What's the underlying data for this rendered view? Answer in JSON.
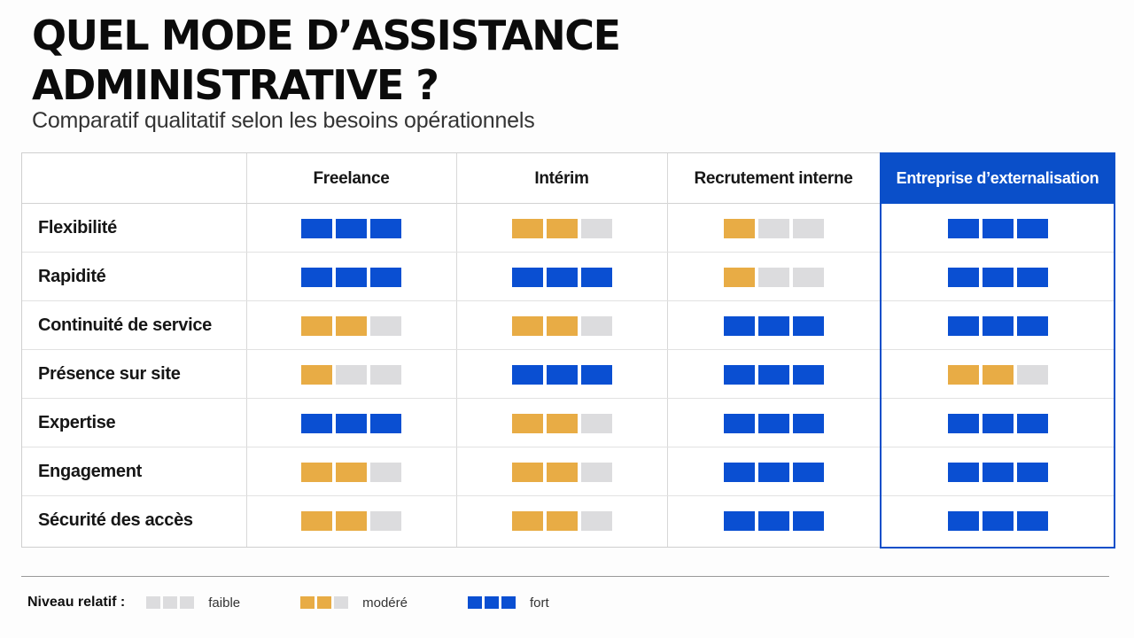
{
  "title_line1": "QUEL MODE D’ASSISTANCE",
  "title_line2": "ADMINISTRATIVE ?",
  "subtitle": "Comparatif qualitatif selon les besoins opérationnels",
  "columns": [
    "Freelance",
    "Intérim",
    "Recrutement interne",
    "Entreprise d’externalisation"
  ],
  "highlighted_column": 3,
  "colors": {
    "fort": "#0a4fd2",
    "modere": "#e8ac45",
    "faible": "#dcdcde",
    "highlight": "#0a4fc9"
  },
  "rows": [
    {
      "label": "Flexibilité",
      "levels": [
        3,
        2,
        1,
        3
      ]
    },
    {
      "label": "Rapidité",
      "levels": [
        3,
        3,
        1,
        3
      ]
    },
    {
      "label": "Continuité de service",
      "levels": [
        2,
        2,
        3,
        3
      ]
    },
    {
      "label": "Présence sur site",
      "levels": [
        1,
        3,
        3,
        2
      ]
    },
    {
      "label": "Expertise",
      "levels": [
        3,
        2,
        3,
        3
      ]
    },
    {
      "label": "Engagement",
      "levels": [
        2,
        2,
        3,
        3
      ]
    },
    {
      "label": "Sécurité des accès",
      "levels": [
        2,
        2,
        3,
        3
      ]
    }
  ],
  "legend": {
    "label": "Niveau relatif :",
    "faible": "faible",
    "modere": "modéré",
    "fort": "fort"
  }
}
